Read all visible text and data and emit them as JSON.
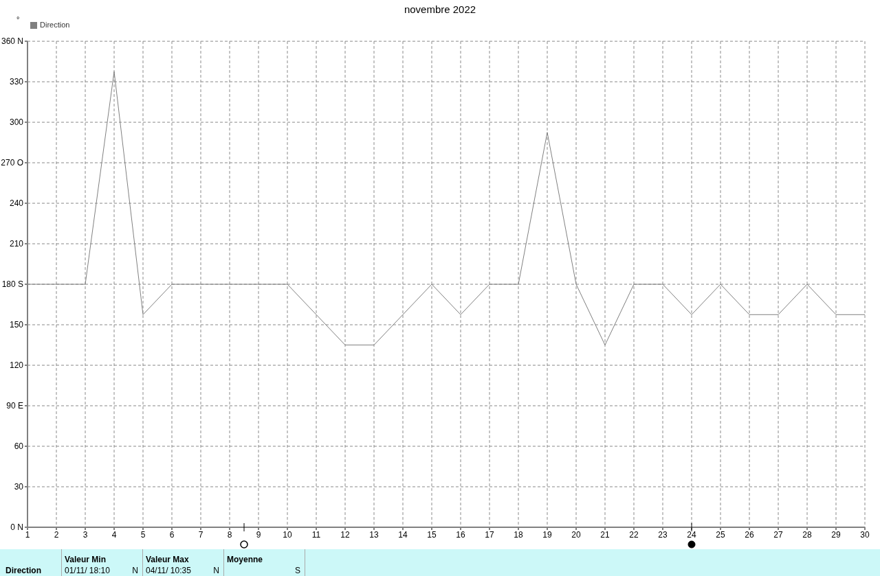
{
  "chart_data": {
    "type": "line",
    "title": "novembre 2022",
    "ylabel": "°",
    "x": [
      1,
      2,
      3,
      4,
      5,
      6,
      7,
      8,
      9,
      10,
      11,
      12,
      13,
      14,
      15,
      16,
      17,
      18,
      19,
      20,
      21,
      22,
      23,
      24,
      25,
      26,
      27,
      28,
      29,
      30
    ],
    "series": [
      {
        "name": "Direction",
        "color": "#808080",
        "values": [
          180,
          180,
          180,
          337.5,
          157.5,
          180,
          180,
          180,
          180,
          180,
          157.5,
          135,
          135,
          157.5,
          180,
          157.5,
          180,
          180,
          292.5,
          180,
          135,
          180,
          180,
          157.5,
          180,
          157.5,
          157.5,
          180,
          157.5,
          157.5
        ]
      }
    ],
    "xlim": [
      1,
      30
    ],
    "xticks": [
      1,
      2,
      3,
      4,
      5,
      6,
      7,
      8,
      9,
      10,
      11,
      12,
      13,
      14,
      15,
      16,
      17,
      18,
      19,
      20,
      21,
      22,
      23,
      24,
      25,
      26,
      27,
      28,
      29,
      30
    ],
    "ylim": [
      0,
      360
    ],
    "yticks": [
      {
        "value": 0,
        "label": "0   N"
      },
      30,
      60,
      {
        "value": 90,
        "label": "90  E"
      },
      120,
      150,
      {
        "value": 180,
        "label": "180 S"
      },
      210,
      240,
      {
        "value": 270,
        "label": "270 O"
      },
      300,
      330,
      {
        "value": 360,
        "label": "360 N"
      }
    ],
    "grid": true,
    "legend": "top left",
    "marker": "none",
    "line_style": "solid",
    "annotations": [
      "Direction",
      "Valeur Min",
      "01/11/  18:10",
      "N",
      "Valeur Max",
      "04/11/  10:35",
      "N",
      "Moyenne",
      "S"
    ]
  }
}
